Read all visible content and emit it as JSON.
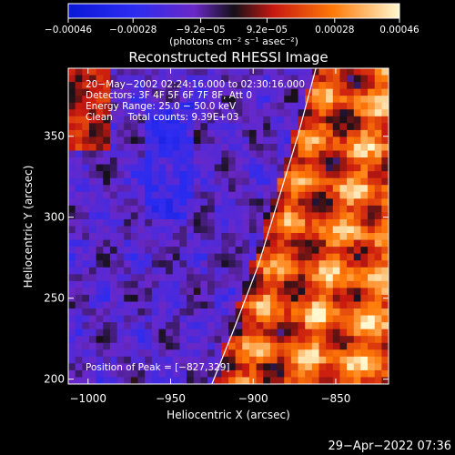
{
  "chart_data": {
    "type": "heatmap",
    "title": "Reconstructed RHESSI Image",
    "xlabel": "Heliocentric X (arcsec)",
    "ylabel": "Heliocentric Y (arcsec)",
    "xlim": [
      -1012,
      -818
    ],
    "ylim": [
      197,
      392
    ],
    "xticks": [
      -1000,
      -950,
      -900,
      -850
    ],
    "yticks": [
      200,
      250,
      300,
      350
    ],
    "colorbar": {
      "label": "(photons cm⁻² s⁻¹ asec⁻²)",
      "range": [
        -0.00046,
        0.00046
      ],
      "tick_values": [
        -0.00046,
        -0.00028,
        -9.2e-05,
        9.2e-05,
        0.00028,
        0.00046
      ],
      "tick_labels": [
        "−0.00046",
        "−0.00028",
        "−9.2e−05",
        "9.2e−05",
        "0.00028",
        "0.00046"
      ]
    },
    "annotations": [
      "20−May−2002 02:24:16.000 to 02:30:16.000",
      "Detectors: 3F 4F 5F 6F 7F 8F, Att 0",
      "Energy Range: 25.0 − 50.0 keV",
      "Clean     Total counts: 9.39E+03"
    ],
    "peak_label": "Position of Peak = [−827,329]",
    "limb_curve": [
      [
        -925,
        197
      ],
      [
        -912,
        230
      ],
      [
        -897,
        270
      ],
      [
        -885,
        310
      ],
      [
        -873,
        350
      ],
      [
        -862,
        392
      ]
    ],
    "grid": false,
    "legend": "none"
  },
  "footer": {
    "timestamp": "29−Apr−2022 07:36"
  }
}
